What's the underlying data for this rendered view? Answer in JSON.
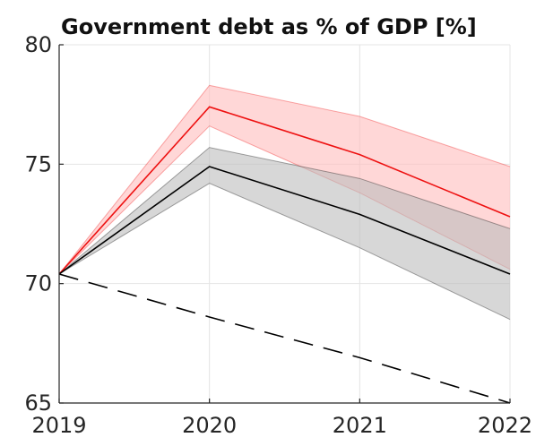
{
  "chart_data": {
    "type": "line",
    "title": "Government debt as % of GDP [%]",
    "xlabel": "",
    "ylabel": "",
    "x": [
      2019,
      2020,
      2021,
      2022
    ],
    "x_ticks": [
      "2019",
      "2020",
      "2021",
      "2022"
    ],
    "y_ticks": [
      "65",
      "70",
      "75",
      "80"
    ],
    "xlim": [
      2019,
      2022
    ],
    "ylim": [
      65,
      80
    ],
    "grid": true,
    "legend": "none",
    "series": [
      {
        "color": "#ee1111",
        "band_color": "#ffbcbc",
        "line": [
          70.4,
          77.4,
          75.4,
          72.8
        ],
        "upper": [
          70.4,
          78.3,
          77.0,
          74.9
        ],
        "lower": [
          70.4,
          76.6,
          73.8,
          70.6
        ]
      },
      {
        "color": "#000000",
        "band_color": "#bdbdbd",
        "line": [
          70.4,
          74.9,
          72.9,
          70.4
        ],
        "upper": [
          70.4,
          75.7,
          74.4,
          72.3
        ],
        "lower": [
          70.4,
          74.2,
          71.5,
          68.5
        ]
      },
      {
        "color": "#000000",
        "style": "dashed",
        "line": [
          70.4,
          68.6,
          66.9,
          65.0
        ]
      }
    ]
  }
}
